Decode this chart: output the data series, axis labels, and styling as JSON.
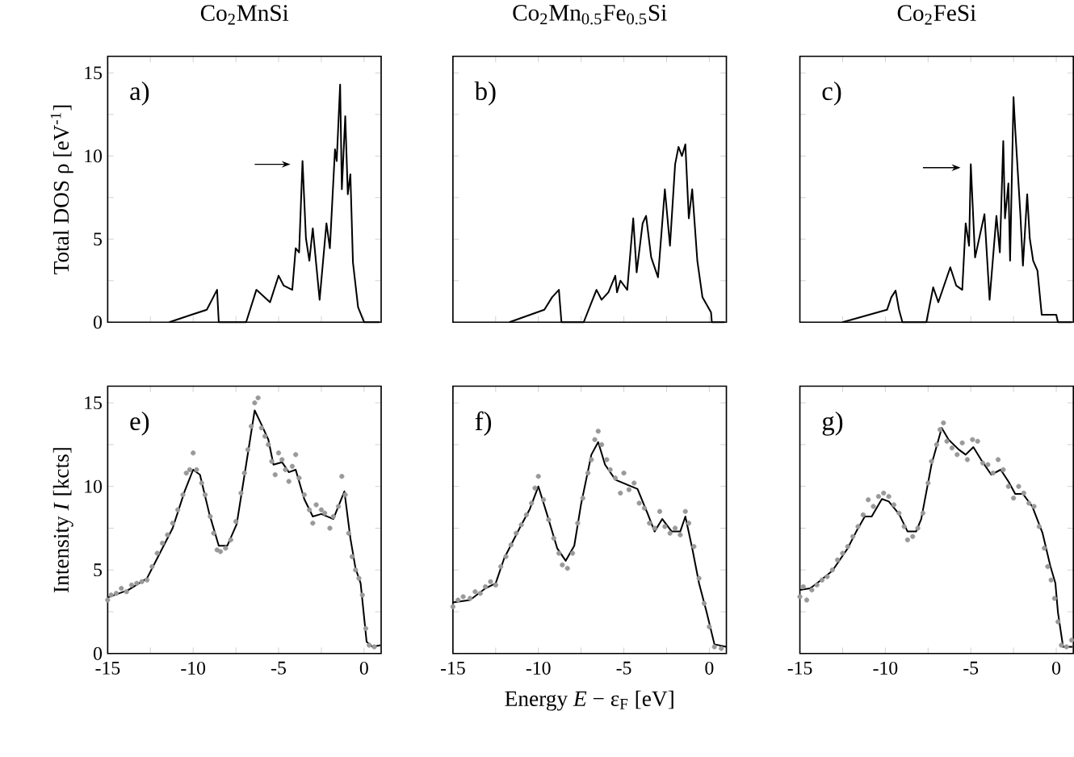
{
  "chart_data": [
    {
      "type": "line",
      "title": "Co$_{2}$MnSi",
      "ylabel": "Total DOS   ρ [eV$^{-1}$]",
      "annotations": [
        "a)"
      ],
      "xlim": [
        -15,
        1
      ],
      "ylim": [
        0,
        16
      ],
      "tick_labels": "y",
      "xticks": [
        -15,
        {
          "value": -12.5,
          "label": null
        },
        -10,
        {
          "value": -7.5,
          "label": null
        },
        -5,
        {
          "value": -2.5,
          "label": null
        },
        0
      ],
      "yticks": [
        0,
        {
          "value": 2.5,
          "label": null
        },
        5,
        {
          "value": 7.5,
          "label": null
        },
        10,
        {
          "value": 12.5,
          "label": null
        },
        15
      ],
      "series": [
        {
          "color": "#000000",
          "x": [
            -11.4,
            -10.1,
            -9.2,
            -8.9,
            -8.6,
            -8.5,
            -6.9,
            -6.3,
            -5.5,
            -5.0,
            -4.7,
            -4.2,
            -4.0,
            -3.8,
            -3.6,
            -3.4,
            -3.2,
            -3.0,
            -2.6,
            -2.2,
            -2.0,
            -1.7,
            -1.6,
            -1.4,
            -1.3,
            -1.1,
            -0.95,
            -0.8,
            -0.65,
            -0.35,
            0.0,
            0.9
          ],
          "values": [
            0,
            0.45,
            0.75,
            1.35,
            1.95,
            0,
            0,
            1.95,
            1.2,
            2.8,
            2.2,
            1.95,
            4.45,
            4.2,
            9.7,
            5.05,
            3.7,
            5.65,
            1.35,
            5.95,
            4.45,
            10.4,
            9.7,
            14.3,
            8.0,
            12.4,
            7.7,
            8.9,
            3.6,
            0.9,
            0,
            0
          ]
        }
      ]
    },
    {
      "type": "line",
      "title": "Co$_{2}$Mn$_{0.5}$Fe$_{0.5}$Si",
      "annotations": [
        "b)"
      ],
      "xlim": [
        -15,
        1
      ],
      "ylim": [
        0,
        16
      ],
      "tick_labels": false,
      "xticks": [
        -15,
        {
          "value": -12.5,
          "label": null
        },
        -10,
        {
          "value": -7.5,
          "label": null
        },
        -5,
        {
          "value": -2.5,
          "label": null
        },
        0
      ],
      "yticks": [
        0,
        {
          "value": 2.5,
          "label": null
        },
        5,
        {
          "value": 7.5,
          "label": null
        },
        10,
        {
          "value": 12.5,
          "label": null
        },
        15
      ],
      "series": [
        {
          "color": "#000000",
          "x": [
            -11.7,
            -9.65,
            -9.2,
            -8.8,
            -8.65,
            -7.35,
            -6.6,
            -6.3,
            -5.9,
            -5.5,
            -5.4,
            -5.2,
            -4.8,
            -4.45,
            -4.25,
            -3.9,
            -3.7,
            -3.4,
            -3.0,
            -2.6,
            -2.3,
            -2.0,
            -1.8,
            -1.6,
            -1.4,
            -1.2,
            -1.0,
            -0.7,
            -0.4,
            0.1,
            0.15,
            0.9
          ],
          "values": [
            0,
            0.75,
            1.5,
            1.95,
            0,
            0,
            1.95,
            1.35,
            1.8,
            2.8,
            1.8,
            2.5,
            1.95,
            6.25,
            3.0,
            5.95,
            6.4,
            3.9,
            2.7,
            8.0,
            4.6,
            9.5,
            10.55,
            10.0,
            10.7,
            6.25,
            8.0,
            3.7,
            1.5,
            0.6,
            0,
            0
          ]
        }
      ]
    },
    {
      "type": "line",
      "title": "Co$_{2}$FeSi",
      "annotations": [
        "c)"
      ],
      "xlim": [
        -15,
        1
      ],
      "ylim": [
        0,
        16
      ],
      "tick_labels": false,
      "xticks": [
        -15,
        {
          "value": -12.5,
          "label": null
        },
        -10,
        {
          "value": -7.5,
          "label": null
        },
        -5,
        {
          "value": -2.5,
          "label": null
        },
        0
      ],
      "yticks": [
        0,
        {
          "value": 2.5,
          "label": null
        },
        5,
        {
          "value": 7.5,
          "label": null
        },
        10,
        {
          "value": 12.5,
          "label": null
        },
        15
      ],
      "series": [
        {
          "color": "#000000",
          "x": [
            -12.5,
            -9.9,
            -9.65,
            -9.4,
            -9.2,
            -9.0,
            -7.6,
            -7.2,
            -6.9,
            -6.6,
            -6.2,
            -5.85,
            -5.5,
            -5.3,
            -5.1,
            -5.0,
            -4.75,
            -4.2,
            -3.9,
            -3.5,
            -3.3,
            -3.1,
            -3.0,
            -2.8,
            -2.7,
            -2.5,
            -2.4,
            -2.1,
            -1.95,
            -1.7,
            -1.55,
            -1.35,
            -1.1,
            -0.85,
            0.0,
            0.1,
            0.9
          ],
          "values": [
            0,
            0.75,
            1.5,
            1.9,
            0.75,
            0,
            0,
            2.1,
            1.2,
            2.1,
            3.3,
            2.2,
            1.95,
            5.95,
            4.6,
            9.5,
            3.9,
            6.5,
            1.35,
            6.4,
            4.2,
            10.9,
            6.25,
            8.35,
            3.7,
            13.55,
            11.6,
            6.5,
            3.4,
            7.7,
            5.05,
            3.7,
            3.1,
            0.45,
            0.45,
            0,
            0
          ]
        }
      ]
    },
    {
      "type": "line",
      "ylabel": "Intensity   *I* [kcts]",
      "annotations": [
        "e)"
      ],
      "xlim": [
        -15,
        1
      ],
      "ylim": [
        0,
        16
      ],
      "xticks": [
        -15,
        {
          "value": -12.5,
          "label": null
        },
        -10,
        {
          "value": -7.5,
          "label": null
        },
        -5,
        {
          "value": -2.5,
          "label": null
        },
        0
      ],
      "yticks": [
        0,
        {
          "value": 2.5,
          "label": null
        },
        5,
        {
          "value": 7.5,
          "label": null
        },
        10,
        {
          "value": 12.5,
          "label": null
        },
        15
      ],
      "series": [
        {
          "type": "scatter",
          "marker": "circle",
          "color": "#999999",
          "x": [
            -15,
            -14.8,
            -14.5,
            -14.2,
            -13.9,
            -13.6,
            -13.3,
            -13,
            -12.7,
            -12.4,
            -12.1,
            -11.8,
            -11.5,
            -11.2,
            -10.9,
            -10.6,
            -10.4,
            -10.2,
            -10,
            -9.8,
            -9.5,
            -9.3,
            -9.0,
            -8.8,
            -8.6,
            -8.4,
            -8.1,
            -7.8,
            -7.5,
            -7.2,
            -7.0,
            -6.8,
            -6.6,
            -6.4,
            -6.2,
            -6.0,
            -5.8,
            -5.6,
            -5.4,
            -5.2,
            -5.0,
            -4.8,
            -4.6,
            -4.4,
            -4.2,
            -4.0,
            -3.8,
            -3.5,
            -3.2,
            -3.0,
            -2.8,
            -2.5,
            -2.3,
            -2.0,
            -1.8,
            -1.5,
            -1.3,
            -1.1,
            -0.9,
            -0.7,
            -0.5,
            -0.3,
            -0.1,
            0.1,
            0.3,
            0.6
          ],
          "values": [
            3.2,
            3.5,
            3.6,
            3.9,
            3.7,
            4.1,
            4.2,
            4.3,
            4.4,
            5.2,
            6.0,
            6.6,
            7.1,
            7.8,
            8.6,
            9.5,
            10.8,
            11.0,
            12.0,
            11.0,
            10.2,
            9.5,
            8.2,
            7.2,
            6.2,
            6.1,
            6.3,
            6.8,
            7.9,
            9.6,
            10.8,
            12.2,
            13.6,
            15.0,
            15.3,
            13.5,
            13.0,
            12.5,
            11.5,
            10.7,
            12.0,
            11.6,
            11.0,
            10.3,
            11.2,
            11.9,
            10.5,
            9.5,
            8.6,
            7.8,
            8.9,
            8.6,
            8.4,
            7.5,
            8.2,
            8.8,
            10.6,
            9.5,
            7.2,
            5.8,
            5.0,
            4.5,
            3.5,
            1.5,
            0.5,
            0.4
          ]
        },
        {
          "marker": "none",
          "color": "#000000",
          "x": [
            -15,
            -13.8,
            -12.7,
            -12.1,
            -11.2,
            -10.5,
            -10.0,
            -9.6,
            -9.05,
            -8.5,
            -8.0,
            -7.45,
            -6.9,
            -6.4,
            -6.0,
            -5.6,
            -5.3,
            -4.8,
            -4.4,
            -4.0,
            -3.5,
            -3.0,
            -2.5,
            -1.8,
            -1.15,
            -0.8,
            -0.5,
            -0.2,
            0.15,
            0.5,
            0.95
          ],
          "values": [
            3.35,
            3.8,
            4.5,
            5.7,
            7.5,
            9.7,
            11.0,
            10.7,
            8.35,
            6.45,
            6.45,
            7.75,
            11.3,
            14.55,
            13.7,
            12.8,
            11.3,
            11.45,
            10.85,
            11.0,
            9.25,
            8.2,
            8.35,
            8.05,
            9.7,
            6.9,
            5.1,
            4.2,
            0.7,
            0.4,
            0.5
          ]
        }
      ]
    },
    {
      "type": "line",
      "xlabel": "Energy   *E* − ε$_{F}$ [eV]",
      "annotations": [
        "f)"
      ],
      "xlim": [
        -15,
        1
      ],
      "ylim": [
        0,
        16
      ],
      "tick_labels": "x",
      "xticks": [
        -15,
        {
          "value": -12.5,
          "label": null
        },
        -10,
        {
          "value": -7.5,
          "label": null
        },
        -5,
        {
          "value": -2.5,
          "label": null
        },
        0
      ],
      "yticks": [
        0,
        {
          "value": 2.5,
          "label": null
        },
        5,
        {
          "value": 7.5,
          "label": null
        },
        10,
        {
          "value": 12.5,
          "label": null
        },
        15
      ],
      "series": [
        {
          "type": "scatter",
          "marker": "circle",
          "color": "#999999",
          "x": [
            -15,
            -14.7,
            -14.4,
            -14,
            -13.7,
            -13.4,
            -13.1,
            -12.8,
            -12.5,
            -12.2,
            -11.9,
            -11.6,
            -11.3,
            -11,
            -10.7,
            -10.4,
            -10.2,
            -10,
            -9.7,
            -9.4,
            -9.1,
            -8.8,
            -8.6,
            -8.3,
            -8.0,
            -7.7,
            -7.4,
            -7.1,
            -6.9,
            -6.7,
            -6.5,
            -6.3,
            -6.0,
            -5.8,
            -5.5,
            -5.2,
            -5.0,
            -4.7,
            -4.4,
            -4.1,
            -3.8,
            -3.5,
            -3.2,
            -2.9,
            -2.6,
            -2.3,
            -2.0,
            -1.7,
            -1.4,
            -1.2,
            -0.9,
            -0.6,
            -0.3,
            0.0,
            0.3,
            0.7
          ],
          "values": [
            2.8,
            3.2,
            3.4,
            3.3,
            3.7,
            3.6,
            4.0,
            4.3,
            4.1,
            5.2,
            5.8,
            6.5,
            7.2,
            7.7,
            8.3,
            9.0,
            9.9,
            10.6,
            9.2,
            8.0,
            6.9,
            6.0,
            5.3,
            5.1,
            6.0,
            7.8,
            9.3,
            10.8,
            11.6,
            12.8,
            13.3,
            12.5,
            11.6,
            11.0,
            10.5,
            9.6,
            10.8,
            9.8,
            10.2,
            9.0,
            8.7,
            7.8,
            7.5,
            8.5,
            7.6,
            7.2,
            7.5,
            7.1,
            8.5,
            7.8,
            6.4,
            4.5,
            3.0,
            1.6,
            0.4,
            0.3
          ]
        },
        {
          "marker": "none",
          "color": "#000000",
          "x": [
            -15,
            -14,
            -13.1,
            -12.5,
            -12.0,
            -11.1,
            -10.5,
            -10.0,
            -9.5,
            -8.9,
            -8.4,
            -7.9,
            -7.5,
            -6.9,
            -6.5,
            -6.1,
            -5.5,
            -4.8,
            -4.2,
            -3.6,
            -3.2,
            -2.75,
            -2.2,
            -1.7,
            -1.4,
            -1.0,
            -0.6,
            -0.15,
            0.3,
            1.0
          ],
          "values": [
            3.05,
            3.2,
            3.9,
            4.2,
            5.7,
            7.5,
            8.65,
            10.0,
            8.35,
            6.3,
            5.55,
            6.45,
            8.95,
            11.9,
            12.65,
            11.3,
            10.4,
            10.1,
            9.85,
            8.35,
            7.3,
            8.05,
            7.3,
            7.3,
            8.2,
            6.3,
            4.2,
            2.45,
            0.55,
            0.4
          ]
        }
      ]
    },
    {
      "type": "line",
      "annotations": [
        "g)"
      ],
      "xlim": [
        -15,
        1
      ],
      "ylim": [
        0,
        16
      ],
      "tick_labels": "x",
      "xticks": [
        -15,
        {
          "value": -12.5,
          "label": null
        },
        -10,
        {
          "value": -7.5,
          "label": null
        },
        -5,
        {
          "value": -2.5,
          "label": null
        },
        0
      ],
      "yticks": [
        0,
        {
          "value": 2.5,
          "label": null
        },
        5,
        {
          "value": 7.5,
          "label": null
        },
        10,
        {
          "value": 12.5,
          "label": null
        },
        15
      ],
      "series": [
        {
          "type": "scatter",
          "marker": "circle",
          "color": "#999999",
          "x": [
            -15,
            -14.8,
            -14.6,
            -14.3,
            -14,
            -13.7,
            -13.4,
            -13.1,
            -12.8,
            -12.5,
            -12.2,
            -11.9,
            -11.6,
            -11.3,
            -11,
            -10.7,
            -10.4,
            -10.1,
            -9.8,
            -9.5,
            -9.2,
            -8.9,
            -8.7,
            -8.4,
            -8.1,
            -7.8,
            -7.5,
            -7.3,
            -7.0,
            -6.8,
            -6.6,
            -6.4,
            -6.1,
            -5.8,
            -5.5,
            -5.2,
            -4.9,
            -4.6,
            -4.3,
            -4.0,
            -3.7,
            -3.4,
            -3.1,
            -2.8,
            -2.5,
            -2.2,
            -1.9,
            -1.6,
            -1.3,
            -1.0,
            -0.7,
            -0.5,
            -0.3,
            -0.1,
            0.1,
            0.3,
            0.6,
            0.9
          ],
          "values": [
            3.4,
            4.0,
            3.2,
            3.8,
            4.1,
            4.4,
            4.6,
            5.0,
            5.6,
            6.0,
            6.4,
            7.0,
            7.6,
            8.3,
            9.2,
            8.8,
            9.4,
            9.6,
            9.4,
            8.9,
            8.4,
            7.6,
            6.8,
            7.0,
            7.5,
            8.4,
            10.2,
            11.5,
            12.5,
            13.4,
            13.8,
            12.7,
            12.3,
            11.9,
            12.6,
            11.6,
            12.8,
            12.7,
            11.4,
            11.3,
            10.8,
            11.6,
            11.0,
            10.0,
            9.3,
            10.0,
            9.6,
            9.0,
            8.8,
            7.6,
            6.3,
            5.2,
            4.4,
            3.3,
            1.9,
            0.5,
            0.4,
            0.8
          ]
        },
        {
          "marker": "none",
          "color": "#000000",
          "x": [
            -15,
            -14.4,
            -14.0,
            -13.1,
            -12.2,
            -11.7,
            -11.2,
            -10.8,
            -10.2,
            -9.8,
            -9.2,
            -8.7,
            -8.2,
            -7.9,
            -7.3,
            -6.7,
            -6.3,
            -5.7,
            -5.3,
            -4.85,
            -4.4,
            -3.8,
            -3.25,
            -2.8,
            -2.4,
            -1.95,
            -1.4,
            -0.8,
            -0.35,
            -0.05,
            0.1,
            0.4,
            0.95
          ],
          "values": [
            3.8,
            3.9,
            4.2,
            4.95,
            6.3,
            7.3,
            8.2,
            8.2,
            9.25,
            9.1,
            8.35,
            7.3,
            7.3,
            8.05,
            11.3,
            13.5,
            12.8,
            12.2,
            11.9,
            12.35,
            11.6,
            10.7,
            11.0,
            10.3,
            9.55,
            9.55,
            8.8,
            7.2,
            5.25,
            4.2,
            2.45,
            0.4,
            0.4
          ]
        }
      ]
    }
  ]
}
